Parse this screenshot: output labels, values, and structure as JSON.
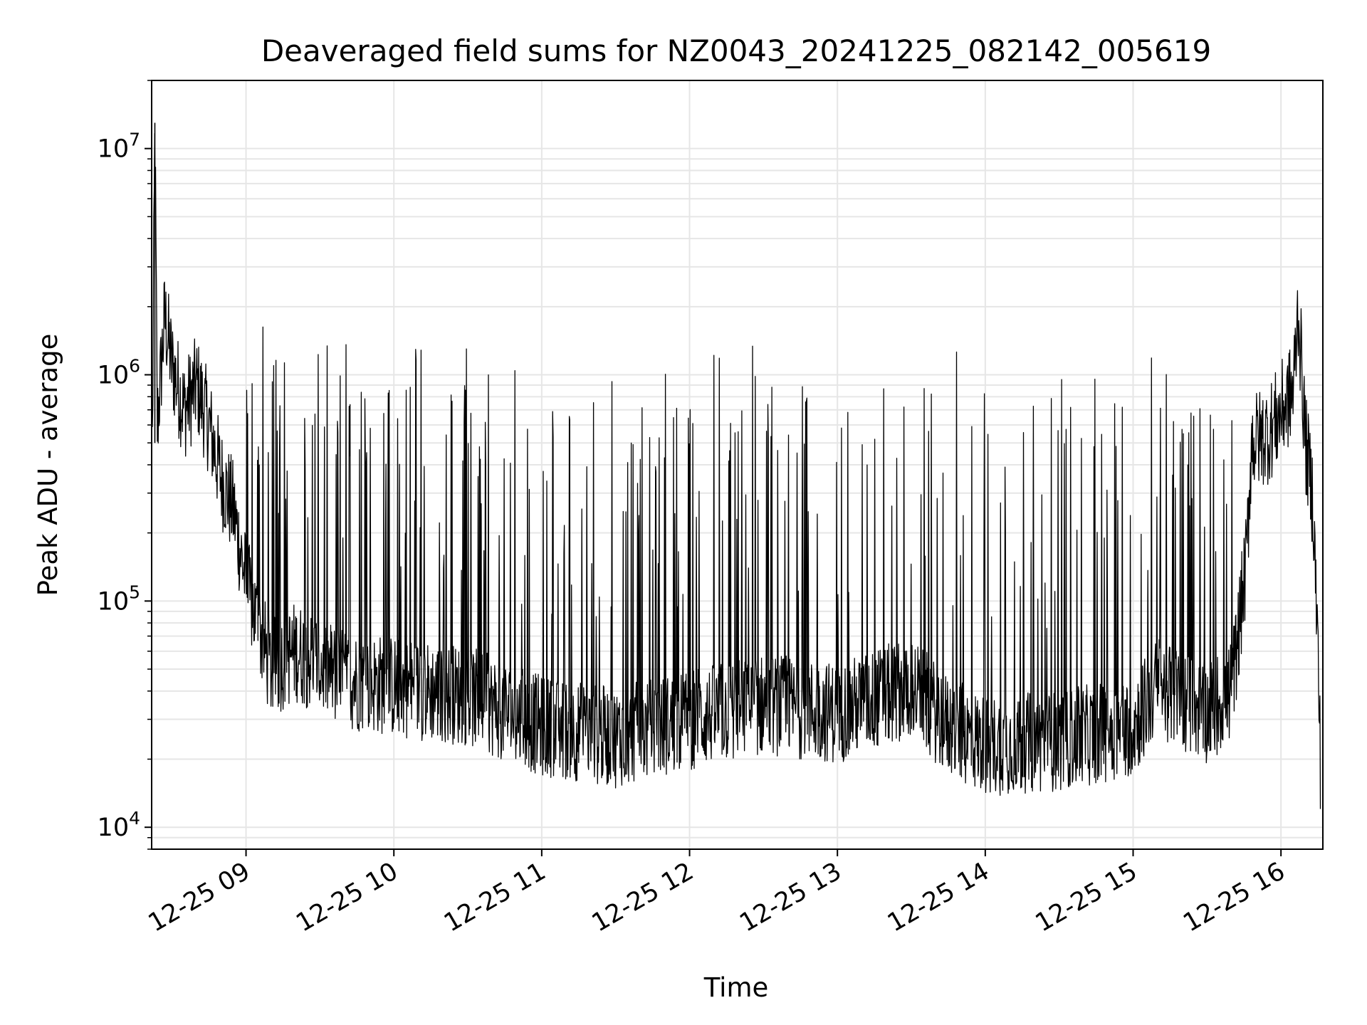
{
  "chart_data": {
    "type": "line",
    "title": "Deaveraged field sums for NZ0043_20241225_082142_005619",
    "xlabel": "Time",
    "ylabel": "Peak ADU - average",
    "y_scale": "log",
    "ylim": [
      8000,
      20000000
    ],
    "xlim": [
      "2024-12-25 08:21:42",
      "2024-12-25 16:17:00"
    ],
    "grid": true,
    "line_color": "#000000",
    "x_ticks": [
      {
        "t": "2024-12-25 09:00",
        "label": "12-25 09"
      },
      {
        "t": "2024-12-25 10:00",
        "label": "12-25 10"
      },
      {
        "t": "2024-12-25 11:00",
        "label": "12-25 11"
      },
      {
        "t": "2024-12-25 12:00",
        "label": "12-25 12"
      },
      {
        "t": "2024-12-25 13:00",
        "label": "12-25 13"
      },
      {
        "t": "2024-12-25 14:00",
        "label": "12-25 14"
      },
      {
        "t": "2024-12-25 15:00",
        "label": "12-25 15"
      },
      {
        "t": "2024-12-25 16:00",
        "label": "12-25 16"
      }
    ],
    "y_ticks": [
      {
        "value": 10000,
        "label": "10^4"
      },
      {
        "value": 100000,
        "label": "10^5"
      },
      {
        "value": 1000000,
        "label": "10^6"
      },
      {
        "value": 10000000,
        "label": "10^7"
      }
    ],
    "series": [
      {
        "values_approx": [
          {
            "t": "2024-12-25 08:22",
            "y": 500000
          },
          {
            "t": "2024-12-25 08:23",
            "y": 13000000
          },
          {
            "t": "2024-12-25 08:24",
            "y": 600000
          },
          {
            "t": "2024-12-25 08:27",
            "y": 1800000
          },
          {
            "t": "2024-12-25 08:30",
            "y": 1100000
          },
          {
            "t": "2024-12-25 08:35",
            "y": 700000
          },
          {
            "t": "2024-12-25 08:40",
            "y": 900000
          },
          {
            "t": "2024-12-25 08:45",
            "y": 600000
          },
          {
            "t": "2024-12-25 08:50",
            "y": 350000
          },
          {
            "t": "2024-12-25 08:55",
            "y": 250000
          },
          {
            "t": "2024-12-25 09:00",
            "y": 120000
          },
          {
            "t": "2024-12-25 09:10",
            "y": 50000
          },
          {
            "t": "2024-12-25 09:20",
            "y": 60000
          },
          {
            "t": "2024-12-25 09:40",
            "y": 45000
          },
          {
            "t": "2024-12-25 10:00",
            "y": 42000
          },
          {
            "t": "2024-12-25 10:30",
            "y": 38000
          },
          {
            "t": "2024-12-25 11:00",
            "y": 28000
          },
          {
            "t": "2024-12-25 11:30",
            "y": 25000
          },
          {
            "t": "2024-12-25 12:00",
            "y": 30000
          },
          {
            "t": "2024-12-25 12:30",
            "y": 35000
          },
          {
            "t": "2024-12-25 13:00",
            "y": 32000
          },
          {
            "t": "2024-12-25 13:30",
            "y": 42000
          },
          {
            "t": "2024-12-25 13:45",
            "y": 28000
          },
          {
            "t": "2024-12-25 14:00",
            "y": 23000
          },
          {
            "t": "2024-12-25 14:30",
            "y": 24000
          },
          {
            "t": "2024-12-25 15:00",
            "y": 28000
          },
          {
            "t": "2024-12-25 15:10",
            "y": 42000
          },
          {
            "t": "2024-12-25 15:30",
            "y": 32000
          },
          {
            "t": "2024-12-25 15:40",
            "y": 40000
          },
          {
            "t": "2024-12-25 15:46",
            "y": 150000
          },
          {
            "t": "2024-12-25 15:48",
            "y": 500000
          },
          {
            "t": "2024-12-25 15:55",
            "y": 550000
          },
          {
            "t": "2024-12-25 16:05",
            "y": 850000
          },
          {
            "t": "2024-12-25 16:07",
            "y": 2000000
          },
          {
            "t": "2024-12-25 16:10",
            "y": 500000
          },
          {
            "t": "2024-12-25 16:13",
            "y": 280000
          },
          {
            "t": "2024-12-25 16:15",
            "y": 60000
          },
          {
            "t": "2024-12-25 16:16",
            "y": 20000
          }
        ]
      }
    ]
  }
}
